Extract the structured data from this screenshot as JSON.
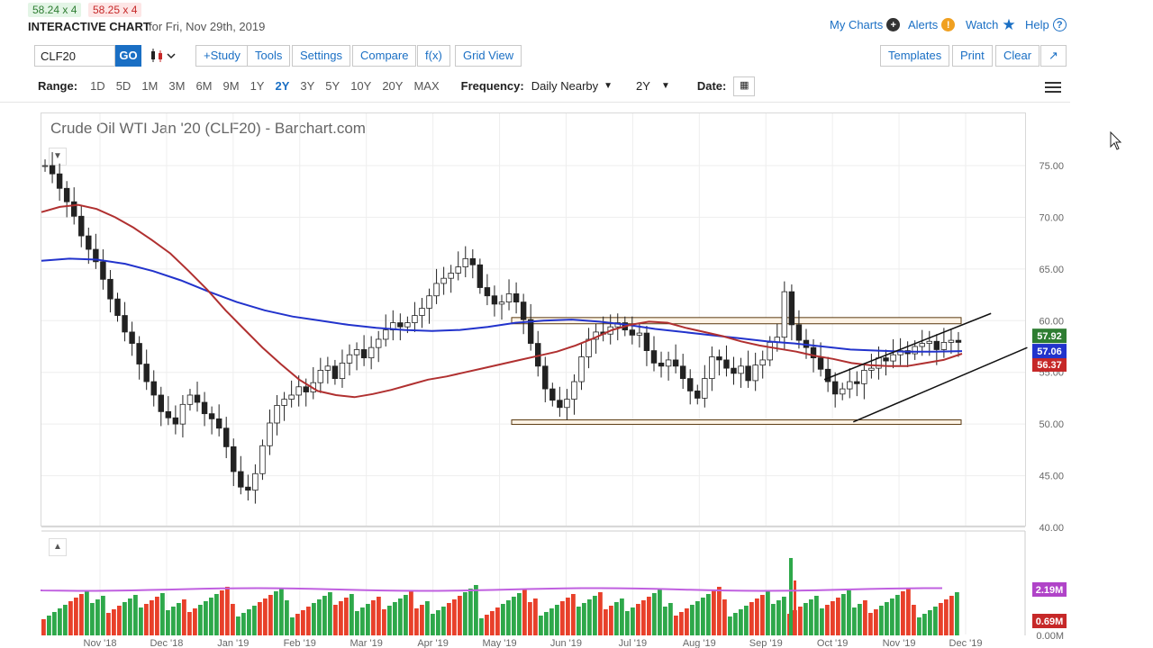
{
  "quotes": {
    "bid": "58.24 x 4",
    "ask": "58.25 x 4"
  },
  "header": {
    "title": "INTERACTIVE CHART",
    "date_for": "for Fri, Nov 29th, 2019"
  },
  "toplinks": {
    "my_charts": "My Charts",
    "alerts": "Alerts",
    "watch": "Watch",
    "help": "Help"
  },
  "toolbar": {
    "symbol": "CLF20",
    "go": "GO",
    "study": "+Study",
    "tools": "Tools",
    "settings": "Settings",
    "compare": "Compare",
    "fx": "f(x)",
    "grid_view": "Grid View",
    "templates": "Templates",
    "print": "Print",
    "clear": "Clear"
  },
  "range": {
    "label": "Range:",
    "options": [
      "1D",
      "5D",
      "1M",
      "3M",
      "6M",
      "9M",
      "1Y",
      "2Y",
      "3Y",
      "5Y",
      "10Y",
      "20Y",
      "MAX"
    ],
    "selected": "2Y",
    "frequency_label": "Frequency:",
    "frequency": "Daily Nearby",
    "period": "2Y",
    "date_label": "Date:"
  },
  "colors": {
    "accent": "#1a6fc4",
    "up": "#2e7d32",
    "down": "#c62828",
    "ma_fast": "#b03030",
    "ma_slow": "#2233cc",
    "volume_ma": "#c060e0"
  },
  "chart_data": {
    "type": "candlestick",
    "title": "Crude Oil WTI Jan '20 (CLF20) - Barchart.com",
    "x_ticks": [
      "Nov '18",
      "Dec '18",
      "Jan '19",
      "Feb '19",
      "Mar '19",
      "Apr '19",
      "May '19",
      "Jun '19",
      "Jul '19",
      "Aug '19",
      "Sep '19",
      "Oct '19",
      "Nov '19",
      "Dec '19"
    ],
    "y_ticks": [
      "75.00",
      "70.00",
      "65.00",
      "60.00",
      "55.00",
      "50.00",
      "45.00",
      "40.00"
    ],
    "ylim": [
      40,
      78
    ],
    "price_label_blue": "57.06",
    "price_label_green": "57.92",
    "price_label_red": "56.37",
    "close": [
      75.0,
      74.2,
      72.8,
      71.5,
      70.1,
      68.2,
      66.9,
      65.7,
      64.0,
      62.1,
      60.5,
      58.9,
      57.8,
      55.8,
      54.1,
      52.8,
      51.2,
      50.6,
      50.0,
      51.9,
      52.8,
      52.1,
      51.0,
      50.5,
      49.6,
      47.8,
      45.4,
      43.9,
      43.6,
      45.2,
      47.9,
      50.1,
      51.8,
      52.4,
      52.8,
      53.6,
      53.1,
      54.0,
      55.2,
      55.6,
      54.4,
      55.9,
      56.7,
      57.2,
      56.4,
      57.4,
      58.2,
      59.1,
      59.8,
      59.4,
      59.8,
      60.5,
      61.2,
      62.4,
      63.6,
      64.1,
      64.6,
      65.2,
      66.0,
      65.4,
      63.2,
      62.4,
      61.6,
      61.8,
      62.6,
      61.8,
      60.1,
      57.8,
      55.6,
      53.4,
      52.3,
      51.6,
      52.4,
      54.1,
      56.5,
      58.2,
      58.9,
      58.7,
      59.4,
      59.8,
      59.1,
      58.6,
      58.8,
      57.1,
      55.9,
      55.6,
      56.2,
      55.6,
      54.4,
      53.2,
      52.5,
      54.4,
      56.5,
      56.2,
      55.4,
      54.9,
      55.6,
      54.2,
      55.7,
      56.2,
      57.9,
      58.4,
      62.8,
      59.6,
      58.1,
      57.4,
      56.4,
      55.3,
      54.1,
      52.9,
      53.4,
      54.1,
      53.9,
      55.2,
      55.4,
      56.4,
      56.1,
      56.7,
      57.1,
      56.8,
      57.5,
      57.8,
      58.0,
      57.2,
      57.9,
      58.1,
      57.9
    ],
    "ma_fast": [
      70.5,
      71.0,
      71.2,
      70.8,
      70.0,
      69.0,
      67.8,
      66.5,
      64.8,
      63.0,
      61.0,
      59.2,
      57.4,
      55.8,
      54.3,
      53.2,
      52.8,
      52.6,
      52.9,
      53.3,
      53.8,
      54.3,
      54.6,
      55.0,
      55.4,
      55.8,
      56.2,
      56.6,
      57.0,
      57.6,
      58.3,
      59.1,
      59.6,
      59.9,
      59.8,
      59.3,
      58.9,
      58.5,
      58.0,
      57.6,
      57.3,
      57.0,
      56.6,
      56.3,
      55.9,
      55.7,
      55.6,
      55.6,
      55.9,
      56.2,
      56.8
    ],
    "ma_slow": [
      65.8,
      66.0,
      65.9,
      65.5,
      64.8,
      63.9,
      62.8,
      61.8,
      61.0,
      60.4,
      60.0,
      59.6,
      59.3,
      59.1,
      59.0,
      59.1,
      59.4,
      59.8,
      60.0,
      60.1,
      59.9,
      59.6,
      59.2,
      58.9,
      58.6,
      58.3,
      58.0,
      57.8,
      57.5,
      57.2,
      57.1,
      57.0,
      57.0,
      57.06
    ],
    "channel_upper": [
      [
        54.3,
        108
      ],
      [
        60.7,
        131
      ]
    ],
    "channel_lower": [
      [
        50.2,
        112
      ],
      [
        57.4,
        136
      ]
    ],
    "support_band": [
      50.0,
      50.4
    ],
    "resistance_band": [
      59.7,
      60.3
    ],
    "volume_labels": {
      "avg": "2.19M",
      "last": "0.69M",
      "zero": "0.00M"
    }
  }
}
